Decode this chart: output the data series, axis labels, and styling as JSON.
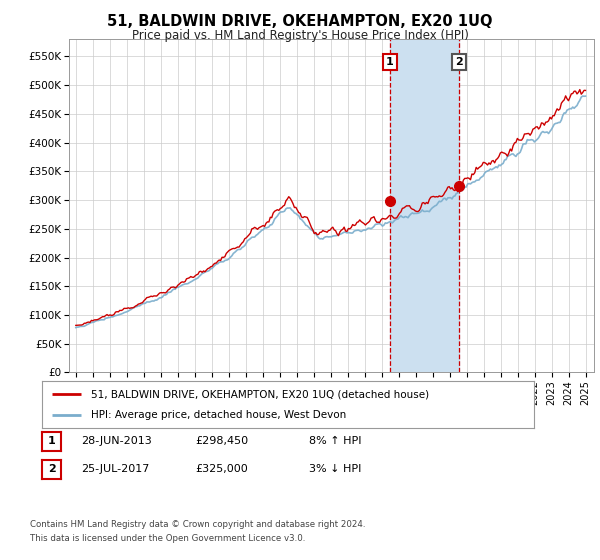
{
  "title": "51, BALDWIN DRIVE, OKEHAMPTON, EX20 1UQ",
  "subtitle": "Price paid vs. HM Land Registry's House Price Index (HPI)",
  "legend_line1": "51, BALDWIN DRIVE, OKEHAMPTON, EX20 1UQ (detached house)",
  "legend_line2": "HPI: Average price, detached house, West Devon",
  "point1_date": "28-JUN-2013",
  "point1_price": "£298,450",
  "point1_hpi": "8% ↑ HPI",
  "point1_year": 2013.49,
  "point1_value": 298450,
  "point2_date": "25-JUL-2017",
  "point2_price": "£325,000",
  "point2_hpi": "3% ↓ HPI",
  "point2_year": 2017.56,
  "point2_value": 325000,
  "shaded_x1": 2013.49,
  "shaded_x2": 2017.56,
  "yticks": [
    0,
    50000,
    100000,
    150000,
    200000,
    250000,
    300000,
    350000,
    400000,
    450000,
    500000,
    550000
  ],
  "ytick_labels": [
    "£0",
    "£50K",
    "£100K",
    "£150K",
    "£200K",
    "£250K",
    "£300K",
    "£350K",
    "£400K",
    "£450K",
    "£500K",
    "£550K"
  ],
  "ylim": [
    0,
    580000
  ],
  "xlim_start": 1994.6,
  "xlim_end": 2025.5,
  "red_line_color": "#cc0000",
  "blue_line_color": "#7aadcc",
  "shaded_color": "#cce0f0",
  "footer_line1": "Contains HM Land Registry data © Crown copyright and database right 2024.",
  "footer_line2": "This data is licensed under the Open Government Licence v3.0.",
  "background_color": "#ffffff",
  "grid_color": "#cccccc",
  "box1_edge_color": "#cc0000",
  "box2_edge_color": "#555555"
}
